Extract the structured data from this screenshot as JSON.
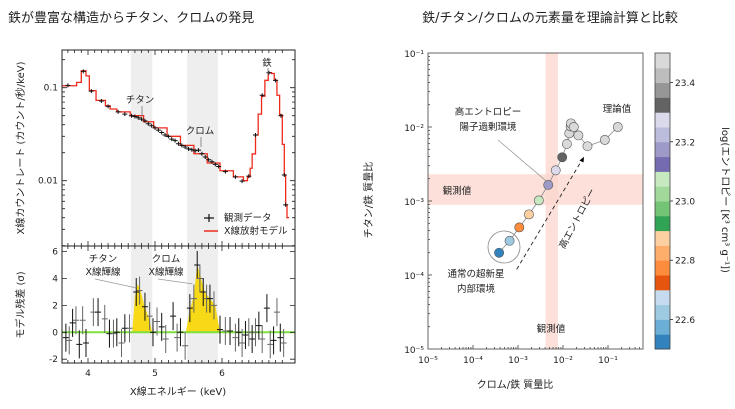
{
  "left_title": "鉄が豊富な構造からチタン、クロムの発見",
  "right_title": "鉄/チタン/クロムの元素量を理論計算と比較",
  "chart_data": [
    {
      "type": "line",
      "panel": "spectrum",
      "ylabel": "X線カウントレート (カウント/秒/keV)",
      "yscale": "log",
      "ylim": [
        0.002,
        0.25
      ],
      "xlim": [
        3.61,
        6.97
      ],
      "yticks": [
        {
          "v": 0.1,
          "label": "0.1"
        },
        {
          "v": 0.01,
          "label": "0.01"
        }
      ],
      "shaded_bands_keV": [
        [
          4.64,
          4.96
        ],
        [
          5.48,
          5.94
        ]
      ],
      "annotations": {
        "ti": "チタン",
        "cr": "クロム",
        "fe": "鉄"
      },
      "legend": {
        "data": "観測データ",
        "model": "X線放射モデル",
        "position": "lower-right"
      },
      "colors": {
        "model": "#ee2a1b",
        "data": "#111111",
        "band": "#eeeeee"
      },
      "model": [
        [
          3.61,
          0.105
        ],
        [
          3.83,
          0.114
        ],
        [
          3.9,
          0.152
        ],
        [
          3.97,
          0.134
        ],
        [
          4.02,
          0.093
        ],
        [
          4.12,
          0.073
        ],
        [
          4.26,
          0.064
        ],
        [
          4.33,
          0.059
        ],
        [
          4.43,
          0.055
        ],
        [
          4.63,
          0.05
        ],
        [
          4.83,
          0.043
        ],
        [
          4.98,
          0.037
        ],
        [
          5.18,
          0.03
        ],
        [
          5.38,
          0.024
        ],
        [
          5.58,
          0.0195
        ],
        [
          5.78,
          0.0155
        ],
        [
          5.97,
          0.0128
        ],
        [
          6.17,
          0.011
        ],
        [
          6.32,
          0.01
        ],
        [
          6.38,
          0.011
        ],
        [
          6.42,
          0.0136
        ],
        [
          6.45,
          0.0194
        ],
        [
          6.5,
          0.031
        ],
        [
          6.54,
          0.052
        ],
        [
          6.59,
          0.081
        ],
        [
          6.64,
          0.12
        ],
        [
          6.69,
          0.145
        ],
        [
          6.74,
          0.142
        ],
        [
          6.78,
          0.12
        ],
        [
          6.82,
          0.083
        ],
        [
          6.86,
          0.051
        ],
        [
          6.9,
          0.0246
        ],
        [
          6.93,
          0.0115
        ],
        [
          6.95,
          0.0055
        ],
        [
          6.97,
          0.004
        ]
      ],
      "observed": [
        [
          3.7,
          0.106
        ],
        [
          3.93,
          0.15
        ],
        [
          4.05,
          0.092
        ],
        [
          4.2,
          0.072
        ],
        [
          4.3,
          0.063
        ],
        [
          4.45,
          0.055
        ],
        [
          4.55,
          0.052
        ],
        [
          4.65,
          0.05
        ],
        [
          4.7,
          0.049
        ],
        [
          4.75,
          0.0475
        ],
        [
          4.8,
          0.046
        ],
        [
          4.85,
          0.044
        ],
        [
          4.9,
          0.041
        ],
        [
          4.95,
          0.039
        ],
        [
          5.0,
          0.037
        ],
        [
          5.05,
          0.035
        ],
        [
          5.1,
          0.033
        ],
        [
          5.15,
          0.031
        ],
        [
          5.2,
          0.03
        ],
        [
          5.25,
          0.028
        ],
        [
          5.3,
          0.027
        ],
        [
          5.35,
          0.025
        ],
        [
          5.4,
          0.024
        ],
        [
          5.45,
          0.023
        ],
        [
          5.5,
          0.022
        ],
        [
          5.55,
          0.0215
        ],
        [
          5.6,
          0.021
        ],
        [
          5.65,
          0.0213
        ],
        [
          5.7,
          0.0195
        ],
        [
          5.75,
          0.018
        ],
        [
          5.8,
          0.0168
        ],
        [
          5.85,
          0.016
        ],
        [
          5.9,
          0.015
        ],
        [
          5.95,
          0.0142
        ],
        [
          6.05,
          0.0125
        ],
        [
          6.2,
          0.011
        ],
        [
          6.3,
          0.0099
        ],
        [
          6.4,
          0.0112
        ],
        [
          6.5,
          0.031
        ],
        [
          6.6,
          0.083
        ],
        [
          6.7,
          0.145
        ],
        [
          6.8,
          0.12
        ],
        [
          6.88,
          0.05
        ],
        [
          6.93,
          0.0115
        ],
        [
          6.95,
          0.0055
        ]
      ]
    },
    {
      "type": "scatter",
      "panel": "residuals",
      "xlabel": "X線エネルギー (keV)",
      "ylabel": "モデル残差 (σ)",
      "ylim": [
        -2.28,
        6.42
      ],
      "xlim": [
        3.61,
        6.97
      ],
      "xticks": [
        4,
        5,
        6
      ],
      "yticks": [
        -2,
        0,
        2,
        4,
        6
      ],
      "annotations": {
        "ti": [
          "チタン",
          "X線輝線"
        ],
        "cr": [
          "クロム",
          "X線輝線"
        ]
      },
      "colors": {
        "zero_line": "#7ee03c",
        "fill": "#f7d917"
      },
      "fill_regions": [
        [
          [
            4.66,
            0
          ],
          [
            4.7,
            2.6
          ],
          [
            4.74,
            3.6
          ],
          [
            4.78,
            3.2
          ],
          [
            4.84,
            2.0
          ],
          [
            4.9,
            1.2
          ],
          [
            4.96,
            0
          ]
        ],
        [
          [
            5.46,
            0
          ],
          [
            5.52,
            1.6
          ],
          [
            5.58,
            2.8
          ],
          [
            5.63,
            5.0
          ],
          [
            5.68,
            4.2
          ],
          [
            5.74,
            3.0
          ],
          [
            5.82,
            2.5
          ],
          [
            5.9,
            2.0
          ],
          [
            5.97,
            0
          ]
        ]
      ],
      "residuals": [
        [
          3.67,
          -0.4
        ],
        [
          3.72,
          -0.6
        ],
        [
          3.77,
          0.7
        ],
        [
          3.82,
          0.9
        ],
        [
          3.87,
          -0.9
        ],
        [
          3.92,
          0.9
        ],
        [
          3.97,
          -0.8
        ],
        [
          4.08,
          1.5
        ],
        [
          4.15,
          1.5
        ],
        [
          4.25,
          1.0
        ],
        [
          4.32,
          -0.1
        ],
        [
          4.38,
          -0.1
        ],
        [
          4.43,
          0.0
        ],
        [
          4.5,
          -0.8
        ],
        [
          4.55,
          0.3
        ],
        [
          4.62,
          0.3
        ],
        [
          4.72,
          3.0
        ],
        [
          4.77,
          3.1
        ],
        [
          4.85,
          1.9
        ],
        [
          4.92,
          1.2
        ],
        [
          4.97,
          0.0
        ],
        [
          5.03,
          0.8
        ],
        [
          5.1,
          0.4
        ],
        [
          5.16,
          -0.5
        ],
        [
          5.27,
          1.2
        ],
        [
          5.33,
          -0.4
        ],
        [
          5.38,
          0.0
        ],
        [
          5.45,
          -1.0
        ],
        [
          5.52,
          1.8
        ],
        [
          5.58,
          2.5
        ],
        [
          5.63,
          5.0
        ],
        [
          5.67,
          4.0
        ],
        [
          5.72,
          3.0
        ],
        [
          5.77,
          2.5
        ],
        [
          5.82,
          2.5
        ],
        [
          5.88,
          2.0
        ],
        [
          5.97,
          0.2
        ],
        [
          6.05,
          0.1
        ],
        [
          6.12,
          0.1
        ],
        [
          6.2,
          -0.4
        ],
        [
          6.25,
          0.0
        ],
        [
          6.3,
          -0.8
        ],
        [
          6.35,
          -0.2
        ],
        [
          6.4,
          0.0
        ],
        [
          6.45,
          -0.5
        ],
        [
          6.5,
          0.0
        ],
        [
          6.55,
          0.5
        ],
        [
          6.6,
          -0.5
        ],
        [
          6.67,
          1.8
        ],
        [
          6.72,
          -0.9
        ],
        [
          6.77,
          -0.6
        ],
        [
          6.82,
          1.5
        ],
        [
          6.87,
          -0.4
        ],
        [
          6.92,
          -0.8
        ]
      ]
    },
    {
      "type": "scatter",
      "panel": "abundance",
      "xlabel": "クロム/鉄 質量比",
      "ylabel": "チタン/鉄 質量比",
      "xscale": "log",
      "yscale": "log",
      "xlim": [
        1e-05,
        0.6
      ],
      "ylim": [
        1e-05,
        0.1
      ],
      "xticks": [
        {
          "v": 1e-05,
          "label": "10⁻⁵"
        },
        {
          "v": 0.0001,
          "label": "10⁻⁴"
        },
        {
          "v": 0.001,
          "label": "10⁻³"
        },
        {
          "v": 0.01,
          "label": "10⁻²"
        },
        {
          "v": 0.1,
          "label": "10⁻¹"
        }
      ],
      "yticks": [
        {
          "v": 1e-05,
          "label": "10⁻⁵"
        },
        {
          "v": 0.0001,
          "label": "10⁻⁴"
        },
        {
          "v": 0.001,
          "label": "10⁻³"
        },
        {
          "v": 0.01,
          "label": "10⁻²"
        },
        {
          "v": 0.1,
          "label": "10⁻¹"
        }
      ],
      "observed_band_y": [
        0.00089,
        0.0023
      ],
      "observed_band_x": [
        0.0041,
        0.0077
      ],
      "band_color": "#fbd5cc",
      "points": [
        {
          "x": 0.00038,
          "y": 0.0002,
          "s": 22.52
        },
        {
          "x": 0.00065,
          "y": 0.00029,
          "s": 22.62
        },
        {
          "x": 0.00107,
          "y": 0.00044,
          "s": 22.77
        },
        {
          "x": 0.00175,
          "y": 0.00066,
          "s": 22.87
        },
        {
          "x": 0.0029,
          "y": 0.00102,
          "s": 23.07
        },
        {
          "x": 0.0047,
          "y": 0.00165,
          "s": 23.17
        },
        {
          "x": 0.0069,
          "y": 0.0026,
          "s": 23.27
        },
        {
          "x": 0.0096,
          "y": 0.0039,
          "s": 23.32
        },
        {
          "x": 0.0122,
          "y": 0.0059,
          "s": 23.47
        },
        {
          "x": 0.0138,
          "y": 0.0082,
          "s": 23.47
        },
        {
          "x": 0.0148,
          "y": 0.0102,
          "s": 23.47
        },
        {
          "x": 0.015,
          "y": 0.0112,
          "s": 23.47
        },
        {
          "x": 0.0174,
          "y": 0.01,
          "s": 23.47
        },
        {
          "x": 0.022,
          "y": 0.0077,
          "s": 23.47
        },
        {
          "x": 0.035,
          "y": 0.0055,
          "s": 23.47
        },
        {
          "x": 0.085,
          "y": 0.0067,
          "s": 23.47
        },
        {
          "x": 0.165,
          "y": 0.01,
          "s": 23.47
        }
      ],
      "annotations": {
        "theory": "理論值",
        "high_entropy_env": [
          "高エントロピー",
          "陽子過剰環境"
        ],
        "observed_y": "観測値",
        "observed_x": "観測値",
        "normal_sn": [
          "通常の超新星",
          "内部環境"
        ],
        "arrow": "高エントロピー"
      },
      "colorbar": {
        "label": "log(エントロピー [K³ cm³ g⁻¹])",
        "range": [
          22.5,
          23.5
        ],
        "ticks": [
          "22.6",
          "22.8",
          "23.0",
          "23.2",
          "23.4"
        ],
        "colors": [
          "#3182bd",
          "#6baed6",
          "#9ecae1",
          "#c6dbef",
          "#e6550d",
          "#fd8d3c",
          "#fdae6b",
          "#fdd0a2",
          "#31a354",
          "#74c476",
          "#a1d99b",
          "#c7e9c0",
          "#756bb1",
          "#9e9ac8",
          "#bcbddc",
          "#dadaeb",
          "#636363",
          "#969696",
          "#bdbdbd",
          "#d9d9d9"
        ]
      }
    }
  ]
}
